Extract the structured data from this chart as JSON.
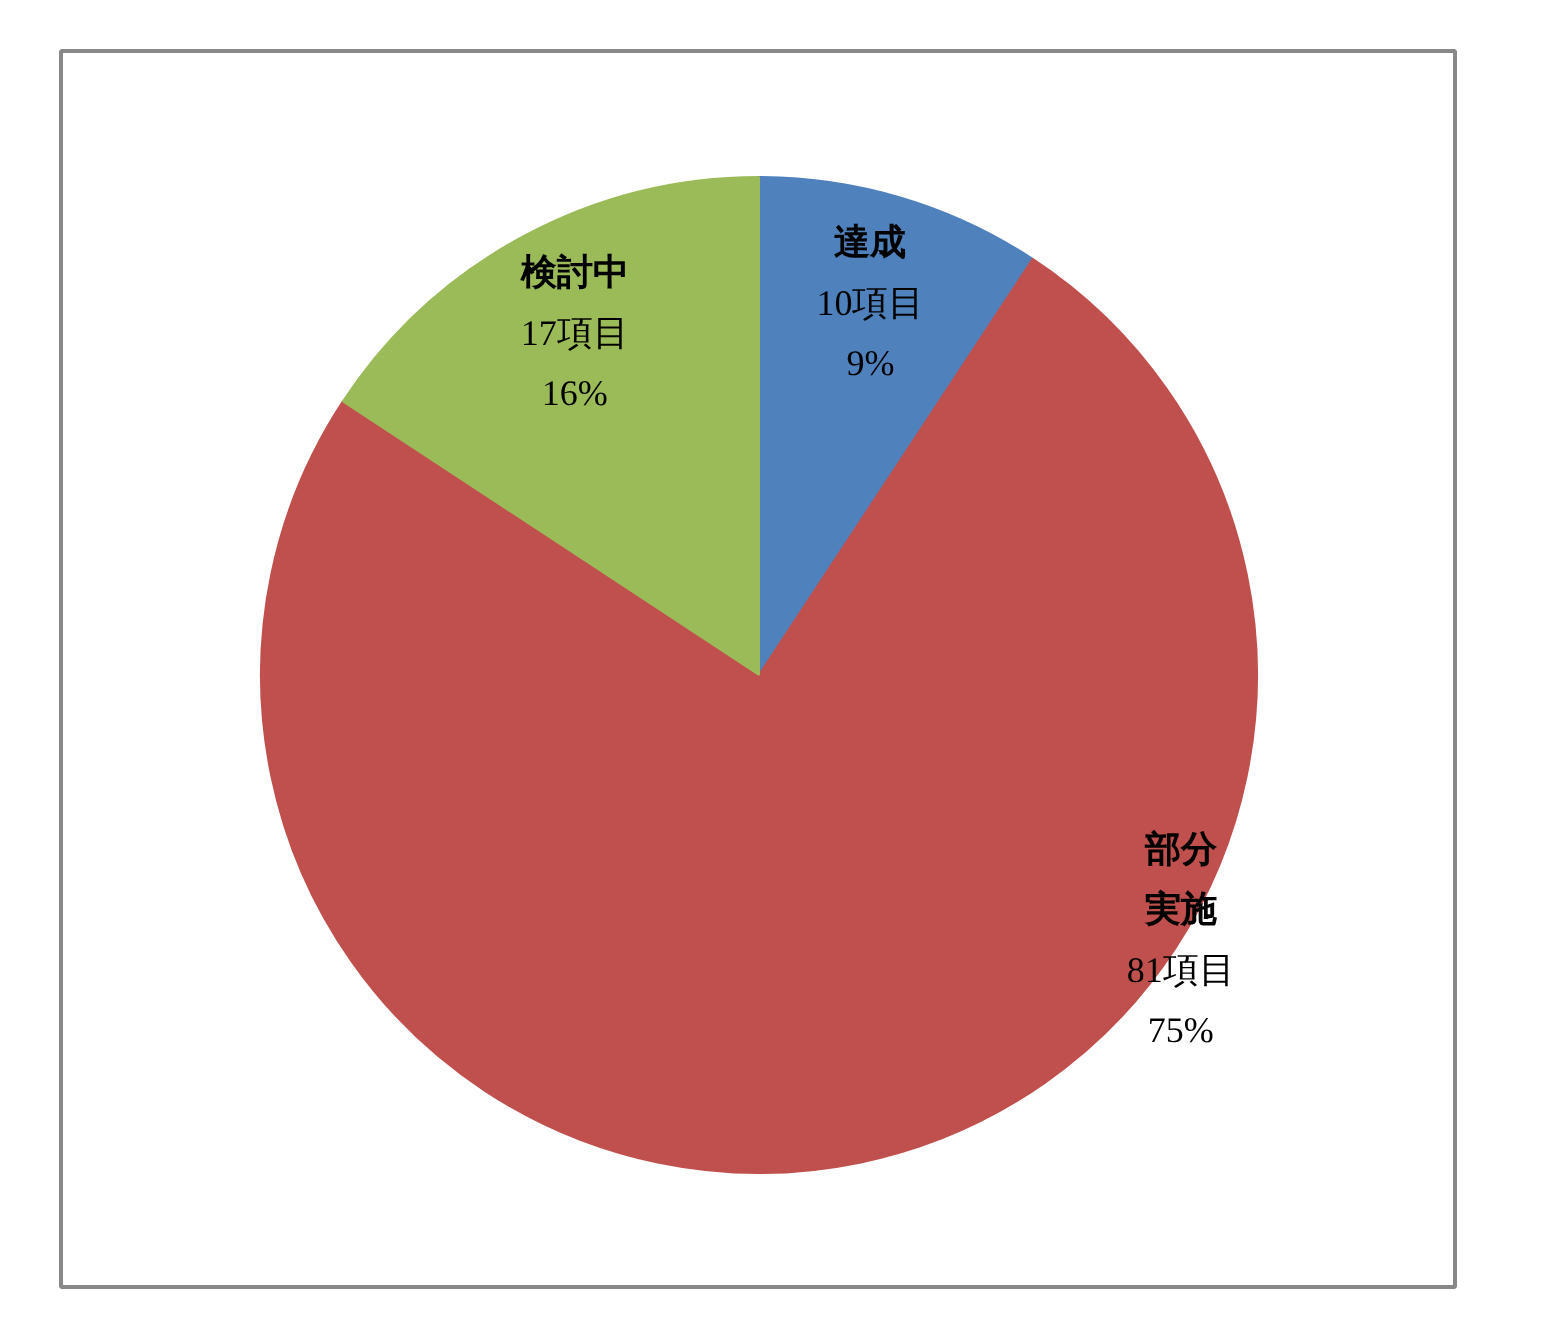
{
  "chart_data": {
    "type": "pie",
    "categories": [
      "達成",
      "部分実施",
      "検討中"
    ],
    "values": [
      10,
      81,
      17
    ],
    "colors": [
      "#4f81bd",
      "#c0504d",
      "#9bbb59"
    ],
    "value_labels": [
      "10項目\n9%",
      "81項目\n75%",
      "17項目\n16%"
    ]
  }
}
